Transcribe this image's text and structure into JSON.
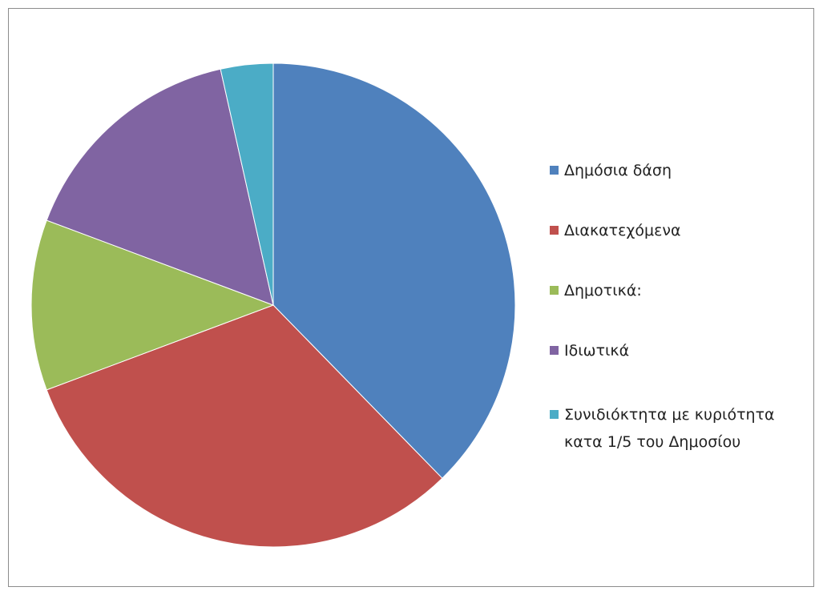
{
  "chart_data": {
    "type": "pie",
    "categories": [
      "Δημόσια δάση",
      "Διακατεχόμενα",
      "Δημοτικά:",
      "Ιδιωτικά",
      "Συνιδιόκτητα με κυριότητα κατα 1/5 του Δημοσίου"
    ],
    "values": [
      37.7,
      31.6,
      11.4,
      15.8,
      3.5
    ],
    "colors": [
      "#4f81bd",
      "#c0504d",
      "#9bbb59",
      "#8064a2",
      "#4bacc6"
    ],
    "legend": "right"
  }
}
